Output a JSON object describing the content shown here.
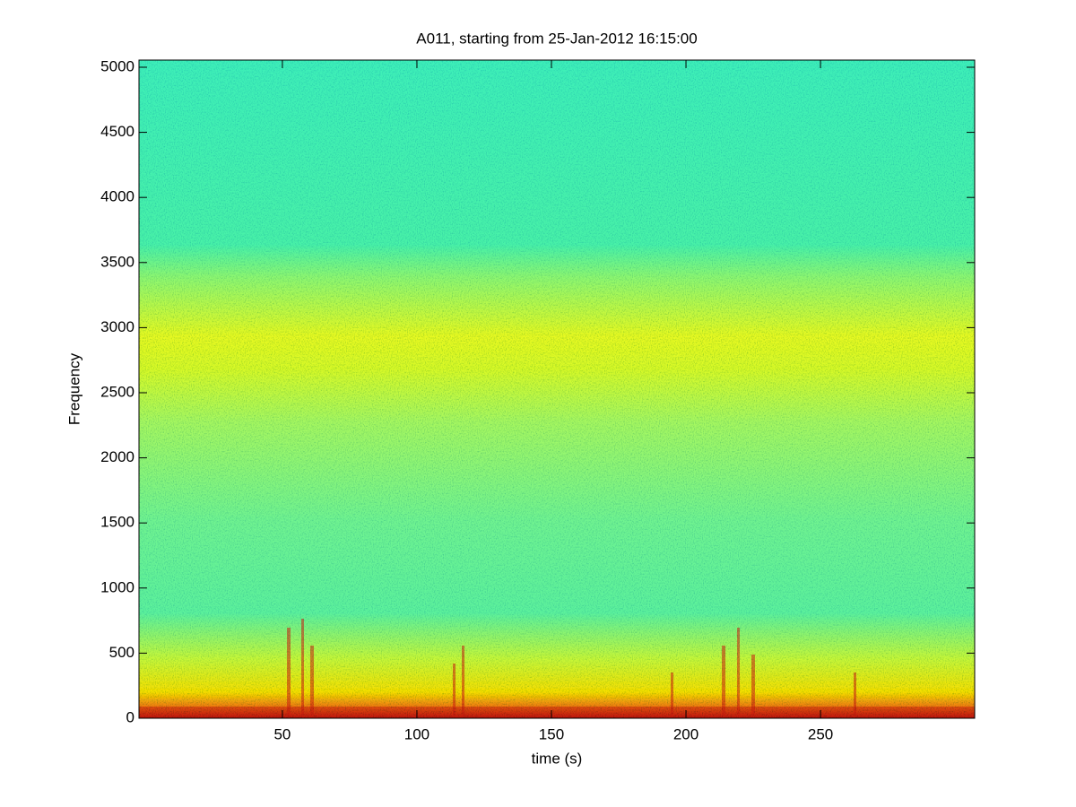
{
  "chart_data": {
    "type": "spectrogram",
    "title": "A011, starting from 25-Jan-2012 16:15:00",
    "xlabel": "time (s)",
    "ylabel": "Frequency",
    "xlim": [
      -3.3,
      307.3
    ],
    "xticks": [
      50,
      100,
      150,
      200,
      250
    ],
    "ylim": [
      0,
      5055
    ],
    "yticks": [
      0,
      500,
      1000,
      1500,
      2000,
      2500,
      3000,
      3500,
      4000,
      4500,
      5000
    ]
  }
}
